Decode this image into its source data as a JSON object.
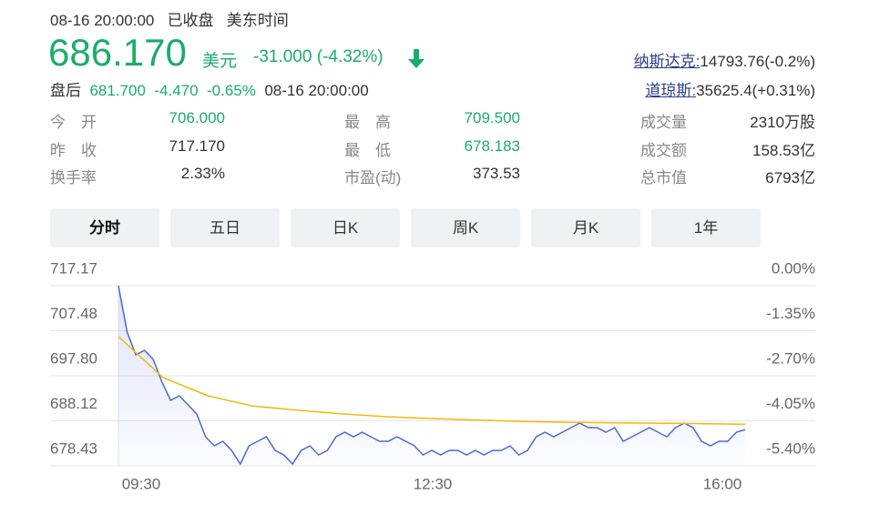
{
  "header": {
    "timestamp": "08-16 20:00:00",
    "status": "已收盘",
    "timezone": "美东时间"
  },
  "quote": {
    "price": "686.170",
    "currency": "美元",
    "change": "-31.000 (-4.32%)"
  },
  "after_hours": {
    "label": "盘后",
    "price": "681.700",
    "change": "-4.470",
    "change_pct": "-0.65%",
    "time": "08-16 20:00:00"
  },
  "indices": [
    {
      "name": "纳斯达克:",
      "value": "14793.76(-0.2%)"
    },
    {
      "name": "道琼斯:",
      "value": "35625.4(+0.31%)"
    }
  ],
  "stats": [
    [
      {
        "label": "今　开",
        "value": "706.000",
        "color": "#1aac6b"
      },
      {
        "label": "昨　收",
        "value": "717.170",
        "color": "#333333"
      },
      {
        "label": "换手率",
        "value": "2.33%",
        "color": "#333333"
      }
    ],
    [
      {
        "label": "最　高",
        "value": "709.500",
        "color": "#1aac6b"
      },
      {
        "label": "最　低",
        "value": "678.183",
        "color": "#1aac6b"
      },
      {
        "label": "市盈(动)",
        "value": "373.53",
        "color": "#333333"
      }
    ],
    [
      {
        "label": "成交量",
        "value": "2310万股",
        "color": "#333333"
      },
      {
        "label": "成交额",
        "value": "158.53亿",
        "color": "#333333"
      },
      {
        "label": "总市值",
        "value": "6793亿",
        "color": "#333333"
      }
    ]
  ],
  "tabs": [
    "分时",
    "五日",
    "日K",
    "周K",
    "月K",
    "1年"
  ],
  "active_tab": 0,
  "chart_data": {
    "type": "line",
    "x_labels": [
      "09:30",
      "12:30",
      "16:00"
    ],
    "ylim": [
      678.43,
      717.17
    ],
    "yticks": [
      717.17,
      707.48,
      {
        "value": 697.8,
        "label": "697.80"
      },
      688.12,
      678.43
    ],
    "y2lim": [
      -5.4,
      0
    ],
    "y2ticks": [
      {
        "value": 0,
        "label": "0.00%"
      },
      {
        "value": -1.35,
        "label": "-1.35%"
      },
      {
        "value": -2.7,
        "label": "-2.70%"
      },
      {
        "value": -4.05,
        "label": "-4.05%"
      },
      {
        "value": -5.4,
        "label": "-5.40%"
      }
    ],
    "grid": true,
    "series": [
      {
        "color": "#4a68d9",
        "fill": true,
        "values": [
          717.17,
          707.19,
          702.3,
          703.28,
          701.32,
          696.43,
          692.52,
          693.5,
          691.54,
          689.58,
          684.69,
          682.73,
          683.71,
          681.76,
          678.82,
          682.73,
          683.71,
          684.69,
          681.76,
          680.78,
          678.82,
          681.76,
          682.73,
          680.78,
          681.76,
          684.69,
          685.67,
          684.69,
          685.67,
          684.69,
          683.71,
          683.71,
          684.69,
          683.71,
          682.73,
          680.78,
          681.76,
          680.78,
          681.76,
          681.76,
          680.78,
          681.76,
          680.78,
          681.76,
          681.76,
          682.73,
          680.78,
          681.76,
          684.69,
          685.67,
          684.69,
          685.67,
          686.65,
          687.63,
          686.65,
          686.65,
          685.67,
          686.65,
          683.71,
          684.69,
          685.67,
          686.65,
          685.67,
          684.69,
          686.65,
          687.63,
          686.65,
          683.71,
          682.73,
          683.71,
          683.71,
          685.67,
          686.24
        ]
      },
      {
        "color": "#f0b90b",
        "fill": false,
        "values": [
          706.21,
          697.4,
          693.5,
          691.3,
          690.4,
          689.6,
          689.0,
          688.6,
          688.3,
          688.0,
          687.8,
          687.7,
          687.6,
          687.5,
          687.4
        ]
      }
    ]
  }
}
